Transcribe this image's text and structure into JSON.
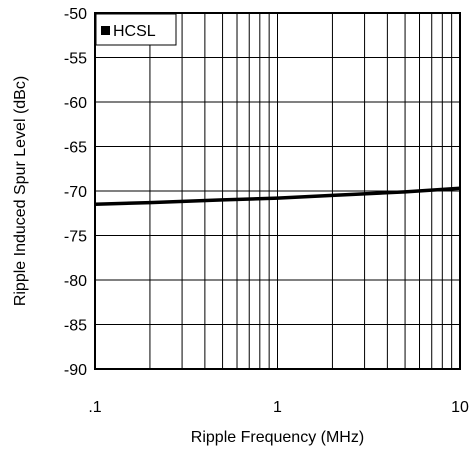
{
  "chart_data": {
    "type": "line",
    "title": "",
    "xlabel": "Ripple Frequency (MHz)",
    "ylabel": "Ripple Induced Spur Level (dBc)",
    "x_scale": "log",
    "xlim": [
      0.1,
      10
    ],
    "ylim": [
      -90,
      -50
    ],
    "x_ticks": [
      0.1,
      1,
      10
    ],
    "x_tick_labels": [
      ".1",
      "1",
      "10"
    ],
    "y_ticks": [
      -50,
      -55,
      -60,
      -65,
      -70,
      -75,
      -80,
      -85,
      -90
    ],
    "y_tick_labels": [
      "-50",
      "-55",
      "-60",
      "-65",
      "-70",
      "-75",
      "-80",
      "-85",
      "-90"
    ],
    "grid": true,
    "legend_position": "top-left",
    "series": [
      {
        "name": "HCSL",
        "color": "#000000",
        "x": [
          0.1,
          0.2,
          0.5,
          1,
          2,
          5,
          10
        ],
        "y": [
          -71.5,
          -71.3,
          -71.0,
          -70.8,
          -70.5,
          -70.1,
          -69.7
        ]
      }
    ]
  }
}
